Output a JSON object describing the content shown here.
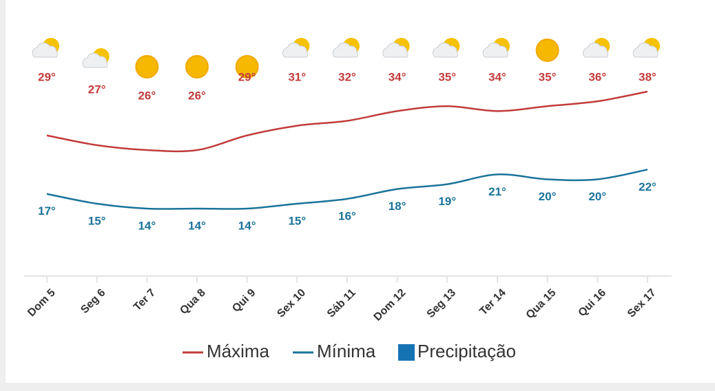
{
  "chart_data": {
    "type": "line",
    "categories": [
      "Dom 5",
      "Seg 6",
      "Ter 7",
      "Qua 8",
      "Qui 9",
      "Sex 10",
      "Sáb 11",
      "Dom 12",
      "Seg 13",
      "Ter 14",
      "Qua 15",
      "Qui 16",
      "Sex 17"
    ],
    "series": [
      {
        "name": "Máxima",
        "color": "#c23b3b",
        "values": [
          29,
          27,
          26,
          26,
          29,
          31,
          32,
          34,
          35,
          34,
          35,
          36,
          38
        ],
        "value_labels": [
          "29°",
          "27°",
          "26°",
          "26°",
          "29°",
          "31°",
          "32°",
          "34°",
          "35°",
          "34°",
          "35°",
          "36°",
          "38°"
        ]
      },
      {
        "name": "Mínima",
        "color": "#1a7399",
        "values": [
          17,
          15,
          14,
          14,
          14,
          15,
          16,
          18,
          19,
          21,
          20,
          20,
          22
        ],
        "value_labels": [
          "17°",
          "15°",
          "14°",
          "14°",
          "14°",
          "15°",
          "16°",
          "18°",
          "19°",
          "21°",
          "20°",
          "20°",
          "22°"
        ]
      },
      {
        "name": "Precipitação",
        "color": "#1673b3",
        "values": [
          null,
          null,
          null,
          null,
          null,
          null,
          null,
          null,
          null,
          null,
          null,
          null,
          null
        ]
      }
    ]
  }
}
